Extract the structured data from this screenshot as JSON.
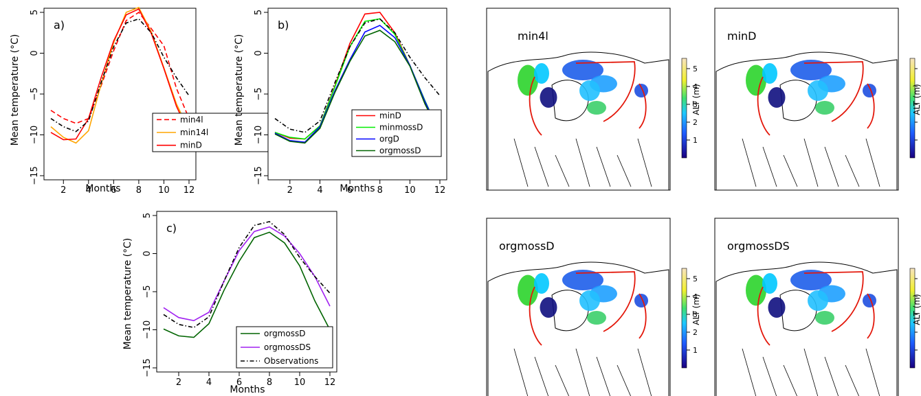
{
  "chart_data": [
    {
      "type": "line",
      "panel_label": "a)",
      "xlabel": "Months",
      "ylabel": "Mean temperature (°C)",
      "xlim": [
        1,
        12
      ],
      "ylim": [
        -15,
        5
      ],
      "x_ticks": [
        2,
        4,
        6,
        8,
        10,
        12
      ],
      "y_ticks": [
        5,
        0,
        -5,
        -10,
        -15
      ],
      "x": [
        1,
        2,
        3,
        4,
        5,
        6,
        7,
        8,
        9,
        10,
        11,
        12
      ],
      "series": [
        {
          "name": "min4l",
          "color": "#ff0000",
          "dash": "dashed",
          "values": [
            -7.0,
            -8.0,
            -8.6,
            -8.0,
            -4.0,
            0.3,
            4.0,
            5.0,
            3.0,
            0.9,
            -4.3,
            -8.0
          ]
        },
        {
          "name": "min14l",
          "color": "#ffa500",
          "dash": "solid",
          "values": [
            -9.0,
            -10.3,
            -11.0,
            -9.5,
            -3.8,
            1.3,
            5.0,
            5.6,
            2.6,
            -1.8,
            -6.2,
            -9.4
          ]
        },
        {
          "name": "minD",
          "color": "#ff0000",
          "dash": "solid",
          "values": [
            -9.7,
            -10.6,
            -10.5,
            -8.0,
            -3.0,
            1.5,
            4.7,
            5.4,
            2.4,
            -1.9,
            -6.5,
            -9.8
          ]
        },
        {
          "name": "",
          "color": "#000000",
          "dash": "dashdot",
          "values": [
            -8.0,
            -9.0,
            -9.6,
            -8.3,
            -3.6,
            0.8,
            3.7,
            4.2,
            2.5,
            -0.5,
            -3.0,
            -5.2
          ]
        }
      ]
    },
    {
      "type": "line",
      "panel_label": "b)",
      "xlabel": "Months",
      "ylabel": "Mean temperature (°C)",
      "xlim": [
        1,
        12
      ],
      "ylim": [
        -15,
        5
      ],
      "x_ticks": [
        2,
        4,
        6,
        8,
        10,
        12
      ],
      "y_ticks": [
        5,
        0,
        -5,
        -10,
        -15
      ],
      "x": [
        1,
        2,
        3,
        4,
        5,
        6,
        7,
        8,
        9,
        10,
        11,
        12
      ],
      "series": [
        {
          "name": "minD",
          "color": "#ff0000",
          "dash": "solid",
          "values": [
            -9.7,
            -10.4,
            -10.5,
            -8.9,
            -4.0,
            1.2,
            4.8,
            5.0,
            2.5,
            -1.5,
            -6.0,
            -9.8
          ]
        },
        {
          "name": "minmossD",
          "color": "#00ee00",
          "dash": "solid",
          "values": [
            -9.7,
            -10.3,
            -10.5,
            -8.9,
            -4.1,
            0.8,
            3.9,
            4.2,
            2.3,
            -1.5,
            -5.8,
            -9.8
          ]
        },
        {
          "name": "orgD",
          "color": "#0000ff",
          "dash": "solid",
          "values": [
            -9.8,
            -10.7,
            -10.9,
            -9.0,
            -4.6,
            -0.8,
            2.6,
            3.4,
            1.9,
            -1.5,
            -5.9,
            -9.8
          ]
        },
        {
          "name": "orgmossD",
          "color": "#006400",
          "dash": "solid",
          "values": [
            -9.9,
            -10.8,
            -11.0,
            -9.2,
            -4.8,
            -1.0,
            2.1,
            2.8,
            1.4,
            -1.6,
            -6.2,
            -9.9
          ]
        },
        {
          "name": "",
          "color": "#000000",
          "dash": "dashdot",
          "values": [
            -8.0,
            -9.3,
            -9.7,
            -8.3,
            -3.6,
            0.8,
            3.7,
            4.2,
            2.5,
            -0.5,
            -3.0,
            -5.2
          ]
        }
      ]
    },
    {
      "type": "line",
      "panel_label": "c)",
      "xlabel": "Months",
      "ylabel": "Mean temperature (°C)",
      "xlim": [
        1,
        12
      ],
      "ylim": [
        -15,
        5
      ],
      "x_ticks": [
        2,
        4,
        6,
        8,
        10,
        12
      ],
      "y_ticks": [
        5,
        0,
        -5,
        -10,
        -15
      ],
      "x": [
        1,
        2,
        3,
        4,
        5,
        6,
        7,
        8,
        9,
        10,
        11,
        12
      ],
      "series": [
        {
          "name": "orgmossD",
          "color": "#006400",
          "dash": "solid",
          "values": [
            -9.9,
            -10.8,
            -11.0,
            -9.2,
            -4.8,
            -1.0,
            2.1,
            2.8,
            1.4,
            -1.6,
            -6.2,
            -10.0
          ]
        },
        {
          "name": "orgmossDS",
          "color": "#a020f0",
          "dash": "solid",
          "values": [
            -7.1,
            -8.4,
            -8.8,
            -7.7,
            -3.6,
            0.4,
            2.9,
            3.5,
            2.3,
            0.0,
            -3.0,
            -6.9
          ]
        },
        {
          "name": "Observations",
          "color": "#000000",
          "dash": "dashdot",
          "values": [
            -8.0,
            -9.3,
            -9.7,
            -8.3,
            -3.6,
            0.8,
            3.7,
            4.2,
            2.5,
            -0.5,
            -3.0,
            -5.2
          ]
        }
      ]
    }
  ],
  "maps": [
    {
      "title": "min4l",
      "colorbar_label": "ALT (m)",
      "colorbar_ticks": [
        "5",
        "4",
        "3",
        "2",
        "1"
      ]
    },
    {
      "title": "minD",
      "colorbar_label": "ALT (m)",
      "colorbar_ticks": [],
      "colorbar_cut": true
    },
    {
      "title": "orgmossD",
      "colorbar_label": "ALT (m)",
      "colorbar_ticks": [
        "5",
        "4",
        "3",
        "2",
        "1"
      ]
    },
    {
      "title": "orgmossDS",
      "colorbar_label": "ALT (m)",
      "colorbar_ticks": [],
      "colorbar_cut": true
    }
  ],
  "colors": {
    "permafrost_boundary": "#e3170a",
    "map_outline": "#000000"
  }
}
